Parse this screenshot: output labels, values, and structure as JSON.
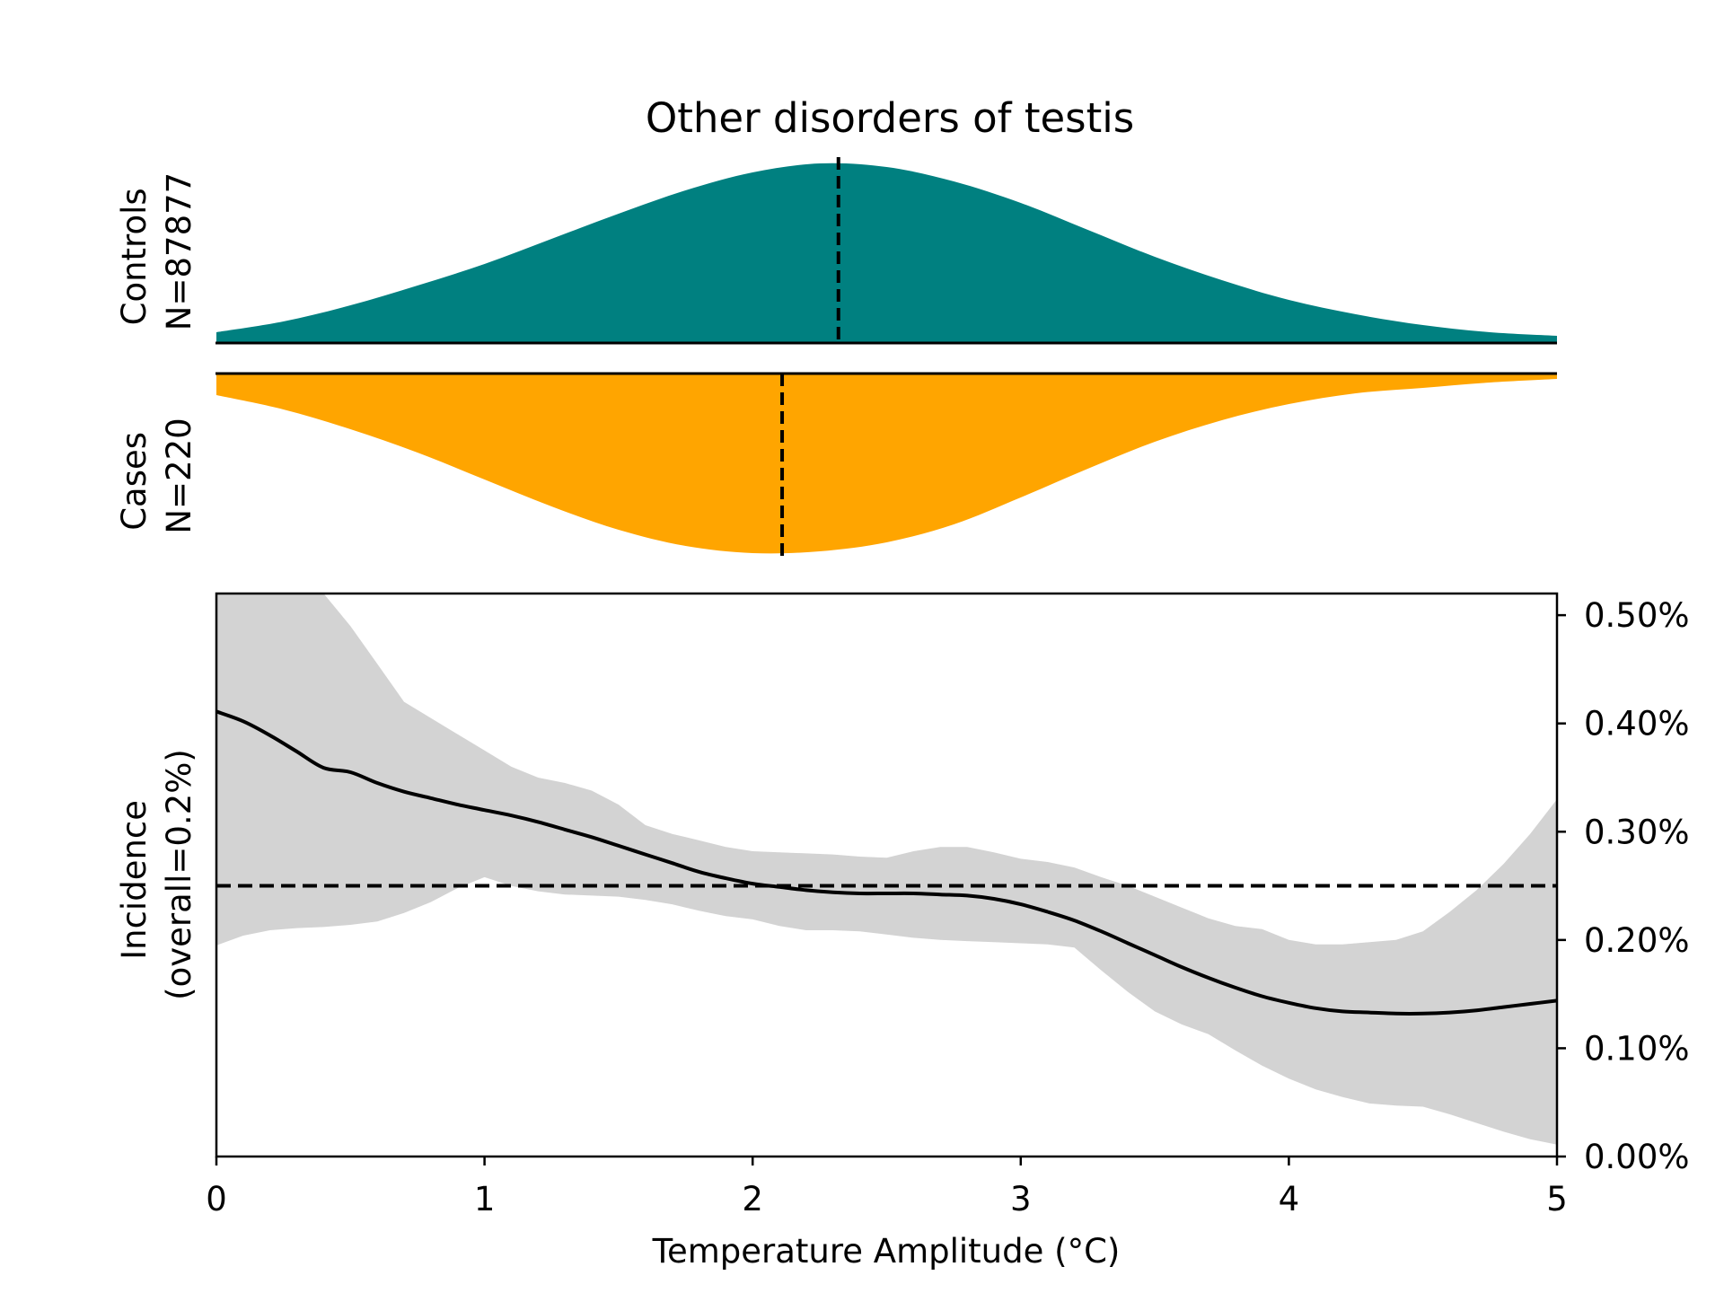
{
  "chart_data": [
    {
      "type": "area",
      "panel": "density-controls",
      "title": "Other disorders of testis",
      "ylabel_line1": "Controls",
      "ylabel_line2": "N=87877",
      "color": "#008080",
      "median_x": 2.32,
      "x": [
        0,
        0.25,
        0.5,
        0.75,
        1.0,
        1.25,
        1.5,
        1.75,
        2.0,
        2.25,
        2.5,
        2.75,
        3.0,
        3.25,
        3.5,
        3.75,
        4.0,
        4.25,
        4.5,
        4.75,
        5.0
      ],
      "density": [
        0.06,
        0.12,
        0.21,
        0.32,
        0.44,
        0.58,
        0.72,
        0.85,
        0.95,
        1.0,
        0.98,
        0.9,
        0.78,
        0.63,
        0.48,
        0.35,
        0.24,
        0.16,
        0.1,
        0.06,
        0.04
      ]
    },
    {
      "type": "area",
      "panel": "density-cases",
      "ylabel_line1": "Cases",
      "ylabel_line2": "N=220",
      "color": "#FFA500",
      "median_x": 2.11,
      "x": [
        0,
        0.25,
        0.5,
        0.75,
        1.0,
        1.25,
        1.5,
        1.75,
        2.0,
        2.25,
        2.5,
        2.75,
        3.0,
        3.25,
        3.5,
        3.75,
        4.0,
        4.25,
        4.5,
        4.75,
        5.0
      ],
      "density": [
        0.12,
        0.2,
        0.31,
        0.44,
        0.59,
        0.74,
        0.87,
        0.96,
        1.0,
        0.99,
        0.94,
        0.84,
        0.69,
        0.53,
        0.38,
        0.26,
        0.17,
        0.11,
        0.08,
        0.05,
        0.03
      ]
    },
    {
      "type": "line",
      "panel": "incidence",
      "xlabel": "Temperature Amplitude (°C)",
      "ylabel_line1": "Incidence",
      "ylabel_line2": "(overall=0.2%)",
      "xlim": [
        0,
        5
      ],
      "ylim": [
        0,
        0.52
      ],
      "x_ticks": [
        "0",
        "1",
        "2",
        "3",
        "4",
        "5"
      ],
      "y_ticks": [
        "0.00%",
        "0.10%",
        "0.20%",
        "0.30%",
        "0.40%",
        "0.50%"
      ],
      "overall_line": 0.25,
      "x": [
        0,
        0.1,
        0.2,
        0.3,
        0.4,
        0.5,
        0.6,
        0.7,
        0.8,
        0.9,
        1.0,
        1.1,
        1.2,
        1.3,
        1.4,
        1.5,
        1.6,
        1.7,
        1.8,
        1.9,
        2.0,
        2.1,
        2.2,
        2.3,
        2.4,
        2.5,
        2.6,
        2.7,
        2.8,
        2.9,
        3.0,
        3.1,
        3.2,
        3.3,
        3.4,
        3.5,
        3.6,
        3.7,
        3.8,
        3.9,
        4.0,
        4.1,
        4.2,
        4.3,
        4.4,
        4.5,
        4.6,
        4.7,
        4.8,
        4.9,
        5.0
      ],
      "y": [
        0.411,
        0.402,
        0.389,
        0.374,
        0.359,
        0.355,
        0.345,
        0.337,
        0.331,
        0.325,
        0.32,
        0.315,
        0.309,
        0.302,
        0.295,
        0.287,
        0.279,
        0.271,
        0.263,
        0.257,
        0.252,
        0.249,
        0.246,
        0.244,
        0.243,
        0.243,
        0.243,
        0.242,
        0.241,
        0.238,
        0.233,
        0.226,
        0.218,
        0.208,
        0.197,
        0.186,
        0.175,
        0.165,
        0.156,
        0.148,
        0.142,
        0.137,
        0.134,
        0.133,
        0.132,
        0.132,
        0.133,
        0.135,
        0.138,
        0.141,
        0.144
      ],
      "upper": [
        0.62,
        0.6,
        0.58,
        0.56,
        0.53,
        0.49,
        0.455,
        0.42,
        0.405,
        0.39,
        0.375,
        0.36,
        0.35,
        0.345,
        0.338,
        0.325,
        0.306,
        0.298,
        0.292,
        0.286,
        0.282,
        0.281,
        0.28,
        0.279,
        0.277,
        0.276,
        0.282,
        0.286,
        0.286,
        0.281,
        0.275,
        0.272,
        0.267,
        0.258,
        0.25,
        0.24,
        0.23,
        0.22,
        0.213,
        0.21,
        0.2,
        0.196,
        0.196,
        0.198,
        0.2,
        0.208,
        0.226,
        0.246,
        0.27,
        0.298,
        0.33
      ],
      "lower": [
        0.195,
        0.204,
        0.209,
        0.211,
        0.212,
        0.214,
        0.217,
        0.225,
        0.235,
        0.248,
        0.258,
        0.25,
        0.245,
        0.242,
        0.241,
        0.24,
        0.237,
        0.233,
        0.227,
        0.222,
        0.219,
        0.213,
        0.209,
        0.209,
        0.208,
        0.205,
        0.202,
        0.2,
        0.199,
        0.198,
        0.197,
        0.196,
        0.193,
        0.172,
        0.152,
        0.134,
        0.122,
        0.113,
        0.098,
        0.084,
        0.072,
        0.062,
        0.055,
        0.049,
        0.047,
        0.046,
        0.039,
        0.031,
        0.023,
        0.016,
        0.011
      ]
    }
  ]
}
